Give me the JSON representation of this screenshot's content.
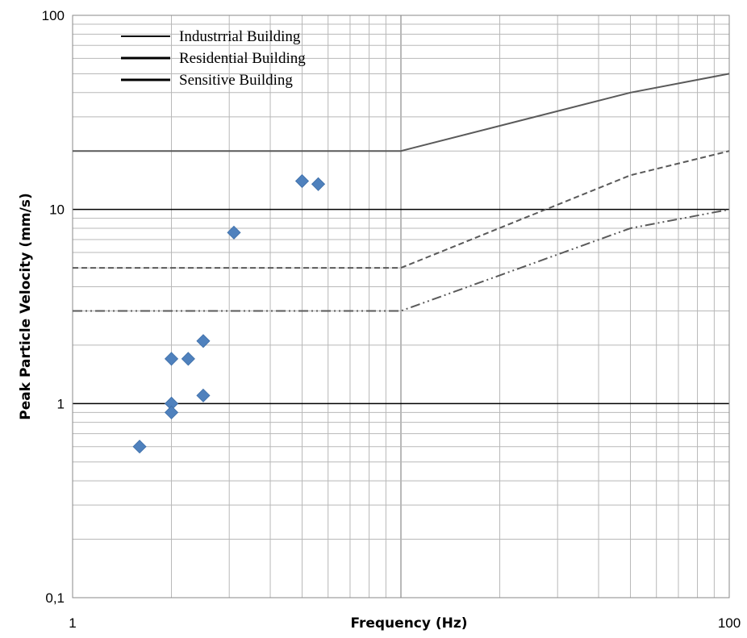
{
  "chart_data": {
    "type": "scatter",
    "title": "",
    "xlabel": "Frequency (Hz)",
    "ylabel": "Peak Particle Velocity (mm/s)",
    "x_scale": "log",
    "y_scale": "log",
    "xlim": [
      1,
      100
    ],
    "ylim": [
      0.1,
      100
    ],
    "x_tick_labels": [
      {
        "value": 1,
        "label": "1"
      },
      {
        "value": 100,
        "label": "100"
      }
    ],
    "y_tick_labels": [
      {
        "value": 0.1,
        "label": "0,1"
      },
      {
        "value": 1,
        "label": "1"
      },
      {
        "value": 10,
        "label": "10"
      },
      {
        "value": 100,
        "label": "100"
      }
    ],
    "grid": true,
    "legend_position": "top-left",
    "series": [
      {
        "name": "Industrrial Building",
        "kind": "line",
        "style": "solid",
        "color": "#5a5a5a",
        "points": [
          [
            1,
            20
          ],
          [
            10,
            20
          ],
          [
            50,
            40
          ],
          [
            100,
            50
          ]
        ]
      },
      {
        "name": "Residential Building",
        "kind": "line",
        "style": "dashed",
        "color": "#5a5a5a",
        "points": [
          [
            1,
            5
          ],
          [
            10,
            5
          ],
          [
            50,
            15
          ],
          [
            100,
            20
          ]
        ]
      },
      {
        "name": "Sensitive Building",
        "kind": "line",
        "style": "dash-dot-dot",
        "color": "#5a5a5a",
        "points": [
          [
            1,
            3
          ],
          [
            10,
            3
          ],
          [
            50,
            8
          ],
          [
            100,
            10
          ]
        ]
      },
      {
        "kind": "scatter",
        "marker": "diamond",
        "color": "#4f81bd",
        "points": [
          [
            1.6,
            0.6
          ],
          [
            2.0,
            1.7
          ],
          [
            2.0,
            1.0
          ],
          [
            2.0,
            0.9
          ],
          [
            2.25,
            1.7
          ],
          [
            2.5,
            2.1
          ],
          [
            2.5,
            1.1
          ],
          [
            3.1,
            7.6
          ],
          [
            5.0,
            14.0
          ],
          [
            5.6,
            13.5
          ]
        ]
      }
    ]
  }
}
